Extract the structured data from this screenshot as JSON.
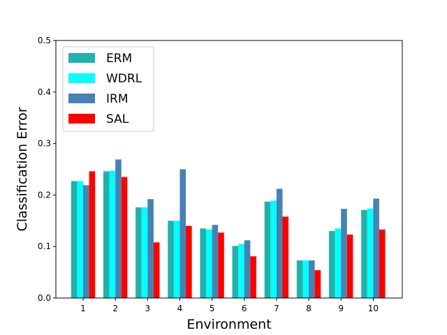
{
  "chart_data": {
    "type": "bar",
    "xlabel": "Environment",
    "ylabel": "Classification Error",
    "ylim": [
      0,
      0.5
    ],
    "yticks": [
      "0.0",
      "0.1",
      "0.2",
      "0.3",
      "0.4",
      "0.5"
    ],
    "yticks_values": [
      0.0,
      0.1,
      0.2,
      0.3,
      0.4,
      0.5
    ],
    "categories": [
      "1",
      "2",
      "3",
      "4",
      "5",
      "6",
      "7",
      "8",
      "9",
      "10"
    ],
    "grid": false,
    "legend_position": "top-left",
    "series": [
      {
        "name": "ERM",
        "color": "#20b2aa",
        "values": [
          0.227,
          0.246,
          0.176,
          0.15,
          0.135,
          0.101,
          0.187,
          0.073,
          0.13,
          0.171
        ]
      },
      {
        "name": "WDRL",
        "color": "#00ffff",
        "values": [
          0.227,
          0.247,
          0.176,
          0.15,
          0.133,
          0.105,
          0.189,
          0.073,
          0.135,
          0.174
        ]
      },
      {
        "name": "IRM",
        "color": "#4682b4",
        "values": [
          0.219,
          0.269,
          0.192,
          0.25,
          0.142,
          0.112,
          0.212,
          0.073,
          0.173,
          0.193
        ]
      },
      {
        "name": "SAL",
        "color": "#ff0000",
        "values": [
          0.246,
          0.235,
          0.108,
          0.14,
          0.127,
          0.081,
          0.158,
          0.054,
          0.123,
          0.133
        ]
      }
    ]
  }
}
